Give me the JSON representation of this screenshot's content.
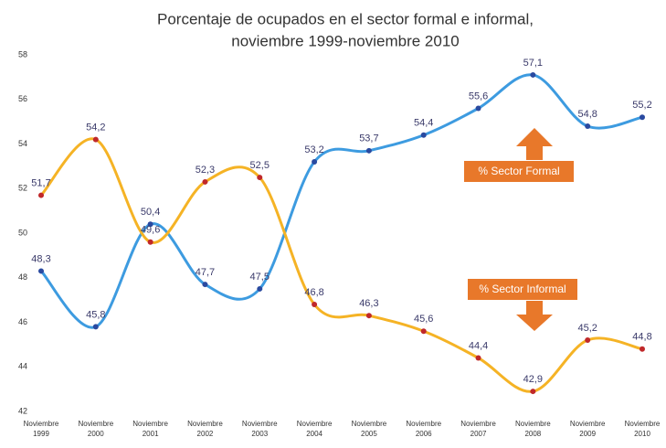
{
  "chart_data": {
    "type": "line",
    "title": [
      "Porcentaje de ocupados en el sector formal e informal,",
      "noviembre 1999-noviembre 2010"
    ],
    "categories": [
      [
        "Noviembre",
        "1999"
      ],
      [
        "Noviembre",
        "2000"
      ],
      [
        "Noviembre",
        "2001"
      ],
      [
        "Noviembre",
        "2002"
      ],
      [
        "Noviembre",
        "2003"
      ],
      [
        "Noviembre",
        "2004"
      ],
      [
        "Noviembre",
        "2005"
      ],
      [
        "Noviembre",
        "2006"
      ],
      [
        "Noviembre",
        "2007"
      ],
      [
        "Noviembre",
        "2008"
      ],
      [
        "Noviembre",
        "2009"
      ],
      [
        "Noviembre",
        "2010"
      ]
    ],
    "series": [
      {
        "name": "% Sector Formal",
        "color": "#3d9be0",
        "values": [
          48.3,
          45.8,
          50.4,
          47.7,
          47.5,
          53.2,
          53.7,
          54.4,
          55.6,
          57.1,
          54.8,
          55.2
        ],
        "value_labels": [
          "48,3",
          "45,8",
          "50,4",
          "47,7",
          "47,5",
          "53,2",
          "53,7",
          "54,4",
          "55,6",
          "57,1",
          "54,8",
          "55,2"
        ]
      },
      {
        "name": "% Sector Informal",
        "color": "#f5b325",
        "values": [
          51.7,
          54.2,
          49.6,
          52.3,
          52.5,
          46.8,
          46.3,
          45.6,
          44.4,
          42.9,
          45.2,
          44.8
        ],
        "value_labels": [
          "51,7",
          "54,2",
          "49,6",
          "52,3",
          "52,5",
          "46,8",
          "46,3",
          "45,6",
          "44,4",
          "42,9",
          "45,2",
          "44,8"
        ]
      }
    ],
    "ylim": [
      42,
      58
    ],
    "yticks": [
      42,
      44,
      46,
      48,
      50,
      52,
      54,
      56,
      58
    ]
  }
}
